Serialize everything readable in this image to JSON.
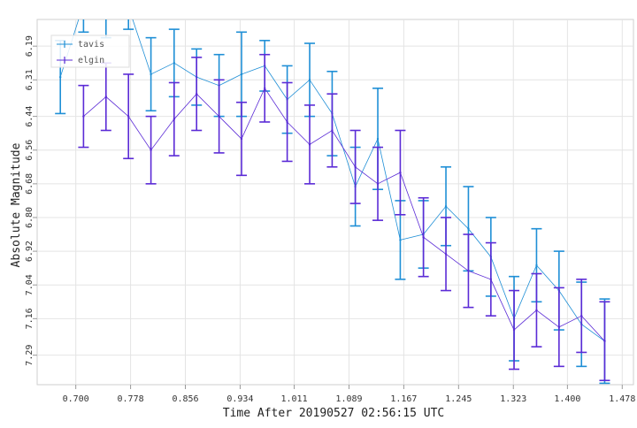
{
  "chart_data": {
    "type": "line",
    "xlabel": "Time After 20190527 02:56:15 UTC",
    "ylabel": "Absolute Magnitude",
    "xlim": [
      0.645,
      1.494
    ],
    "ylim": [
      7.395,
      6.095
    ],
    "y_inverted": true,
    "grid": true,
    "legend": "top-left",
    "x_ticks": [
      "0.700",
      "0.778",
      "0.856",
      "0.934",
      "1.011",
      "1.089",
      "1.167",
      "1.245",
      "1.323",
      "1.400",
      "1.478"
    ],
    "y_ticks": [
      "6.19",
      "6.31",
      "6.44",
      "6.56",
      "6.68",
      "6.80",
      "6.92",
      "7.04",
      "7.16",
      "7.29"
    ],
    "series": [
      {
        "name": "tavis",
        "color": "#1f8fd6",
        "x": [
          0.678,
          0.711,
          0.743,
          0.775,
          0.807,
          0.84,
          0.872,
          0.904,
          0.936,
          0.969,
          1.001,
          1.033,
          1.065,
          1.098,
          1.13,
          1.162,
          1.195,
          1.227,
          1.259,
          1.291,
          1.324,
          1.356,
          1.388,
          1.42,
          1.453
        ],
        "y": [
          6.3,
          6.04,
          6.04,
          6.05,
          6.29,
          6.25,
          6.3,
          6.33,
          6.29,
          6.26,
          6.38,
          6.31,
          6.43,
          6.69,
          6.52,
          6.88,
          6.86,
          6.76,
          6.84,
          6.94,
          7.16,
          6.97,
          7.06,
          7.18,
          7.24
        ],
        "err": [
          0.13,
          0.1,
          0.12,
          0.08,
          0.13,
          0.12,
          0.1,
          0.11,
          0.15,
          0.09,
          0.12,
          0.13,
          0.15,
          0.14,
          0.18,
          0.14,
          0.12,
          0.14,
          0.15,
          0.14,
          0.15,
          0.13,
          0.14,
          0.15,
          0.15
        ]
      },
      {
        "name": "elgin",
        "color": "#5b2bd6",
        "x": [
          0.711,
          0.743,
          0.775,
          0.807,
          0.84,
          0.872,
          0.904,
          0.936,
          0.969,
          1.001,
          1.033,
          1.065,
          1.098,
          1.13,
          1.162,
          1.195,
          1.227,
          1.259,
          1.291,
          1.324,
          1.356,
          1.388,
          1.42,
          1.453
        ],
        "y": [
          6.44,
          6.37,
          6.44,
          6.56,
          6.45,
          6.36,
          6.44,
          6.52,
          6.34,
          6.46,
          6.54,
          6.49,
          6.62,
          6.68,
          6.64,
          6.87,
          6.93,
          6.99,
          7.02,
          7.2,
          7.13,
          7.19,
          7.15,
          7.24
        ],
        "err": [
          0.11,
          0.12,
          0.15,
          0.12,
          0.13,
          0.13,
          0.13,
          0.13,
          0.12,
          0.14,
          0.14,
          0.13,
          0.13,
          0.13,
          0.15,
          0.14,
          0.13,
          0.13,
          0.13,
          0.14,
          0.13,
          0.14,
          0.13,
          0.14
        ]
      }
    ]
  }
}
